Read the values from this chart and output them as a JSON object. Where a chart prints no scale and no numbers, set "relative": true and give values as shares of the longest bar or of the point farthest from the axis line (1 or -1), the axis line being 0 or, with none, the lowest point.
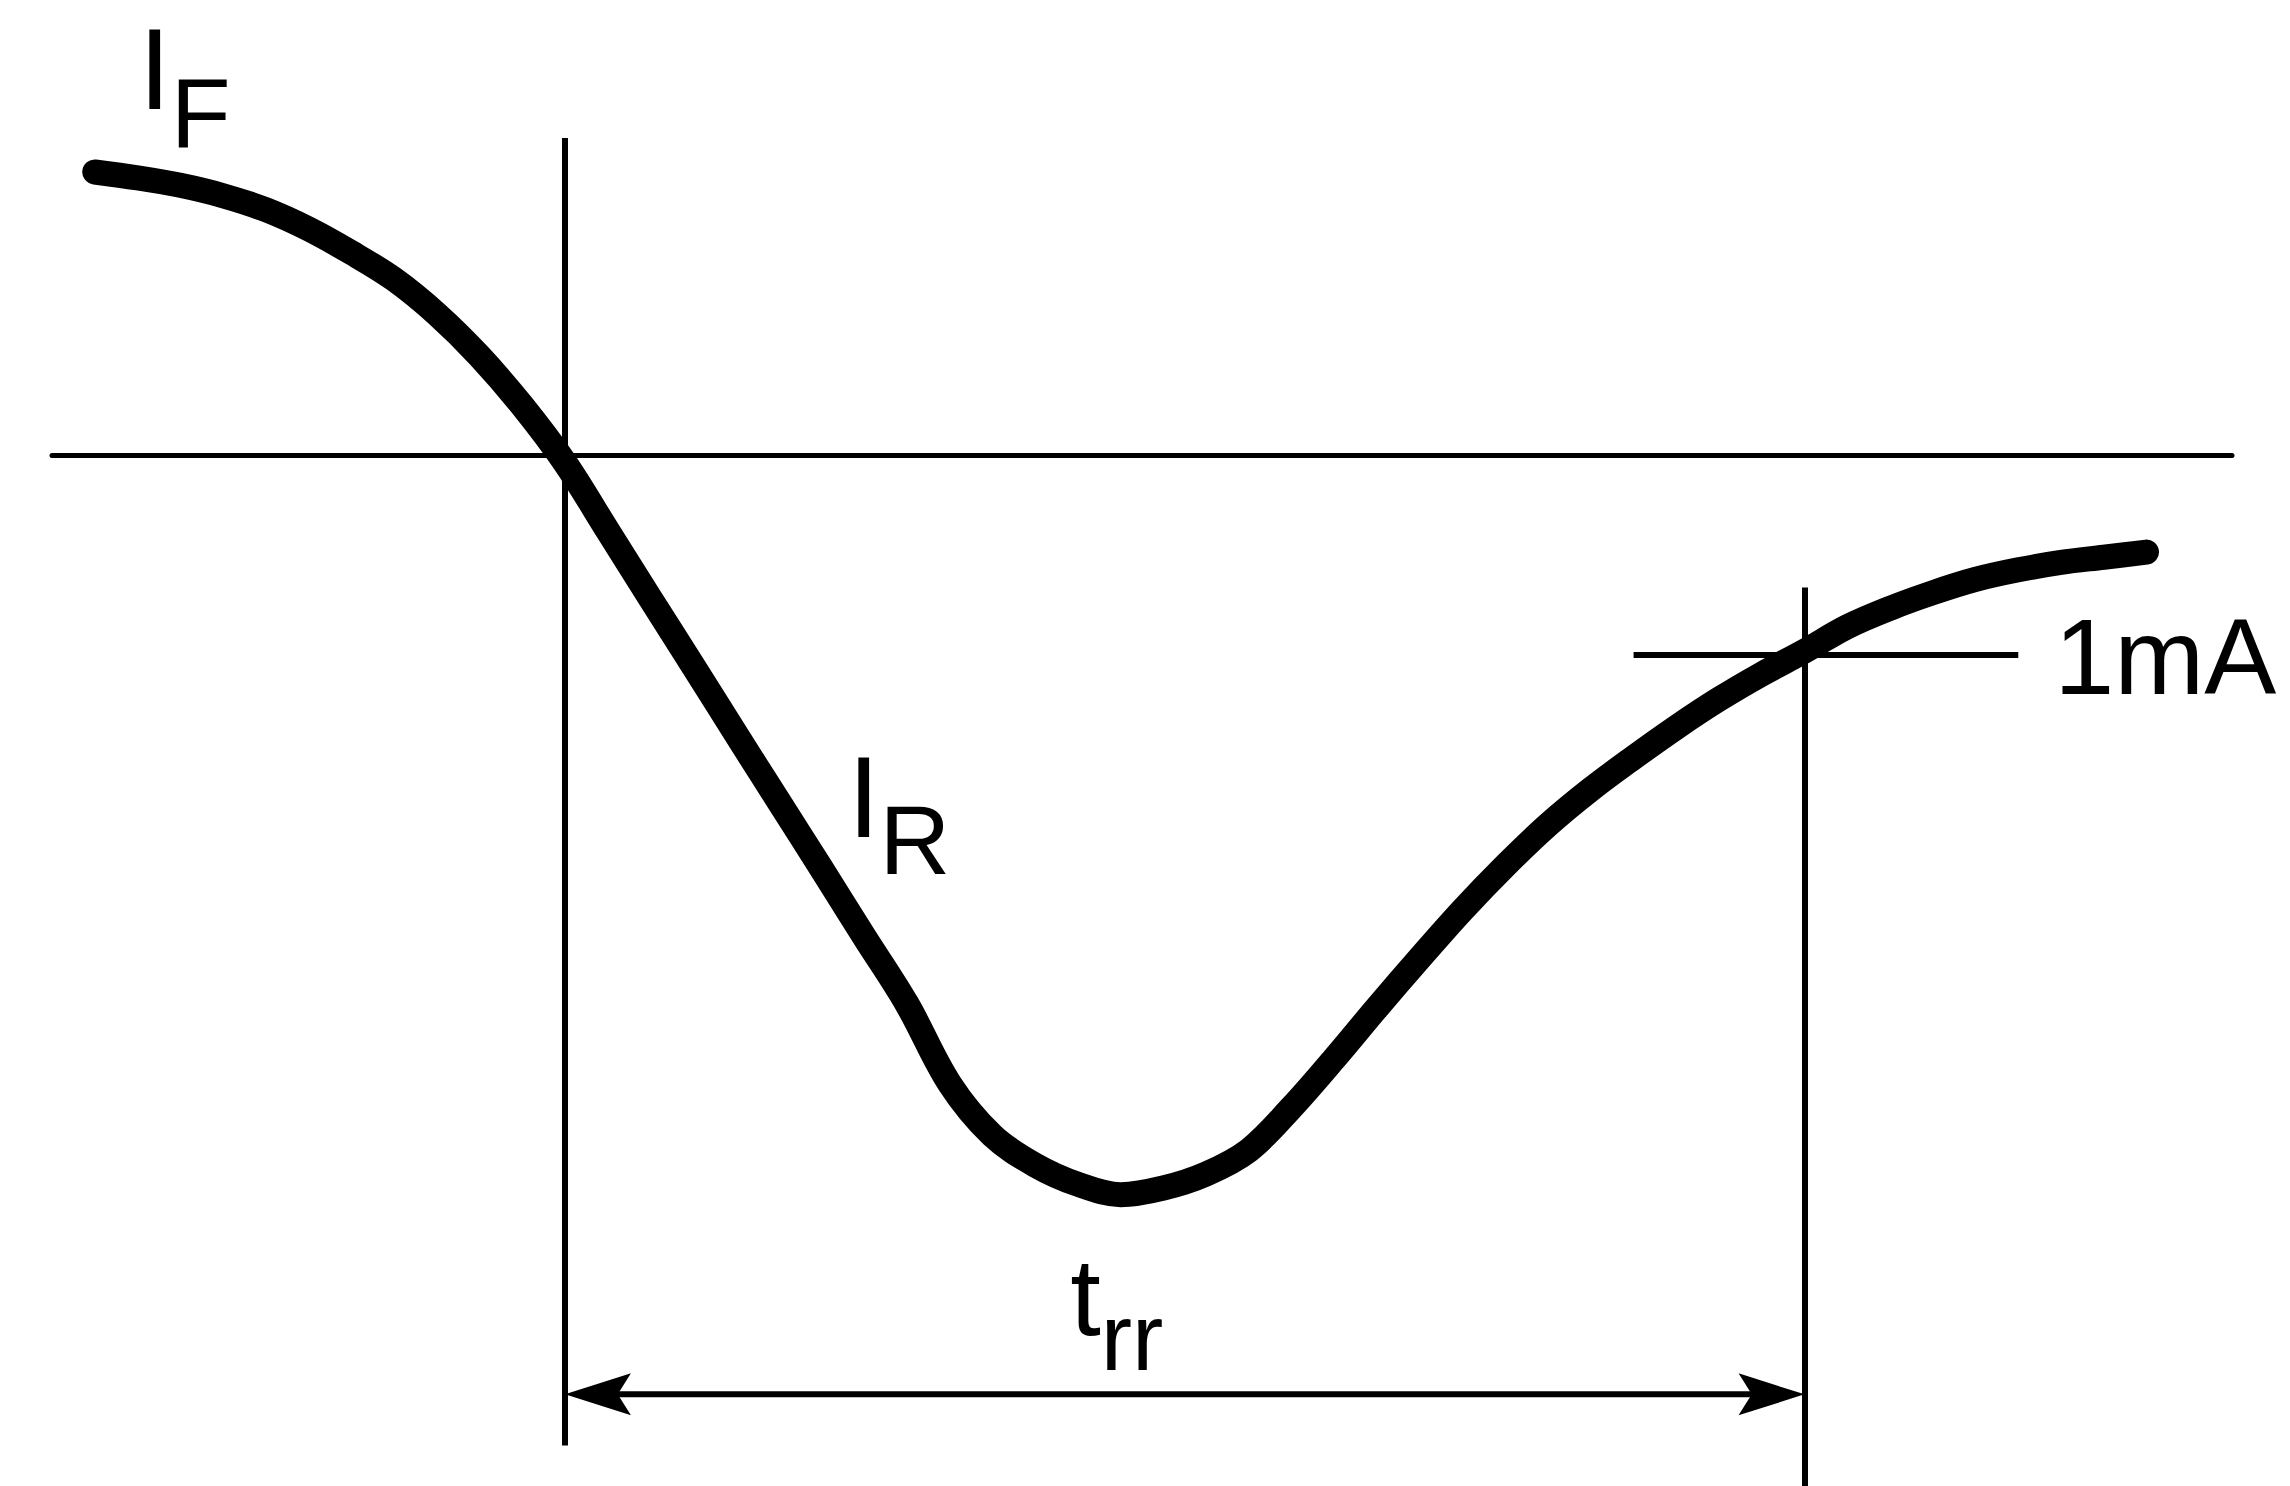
{
  "chart_data": {
    "type": "line",
    "relative": true,
    "categories": [
      null,
      null,
      null,
      null,
      null,
      null,
      null,
      null,
      null,
      null,
      null,
      null,
      null,
      null,
      null,
      null,
      null,
      null,
      null,
      null,
      null,
      null,
      null,
      null,
      null,
      null,
      null,
      null,
      null,
      null,
      null,
      null,
      null,
      null,
      null,
      null,
      null,
      null,
      null,
      null,
      null,
      null,
      null,
      null,
      null,
      null,
      null,
      null,
      null
    ],
    "series": [
      {
        "color": "#000000",
        "values": [
          0.383,
          0.375,
          0.365,
          0.351,
          0.332,
          0.306,
          0.274,
          0.238,
          0.191,
          0.134,
          0.067,
          -0.01,
          -0.102,
          -0.194,
          -0.285,
          -0.377,
          -0.468,
          -0.559,
          -0.651,
          -0.742,
          -0.85,
          -0.92,
          -0.96,
          -0.986,
          -1,
          -0.991,
          -0.972,
          -0.94,
          -0.882,
          -0.816,
          -0.747,
          -0.68,
          -0.615,
          -0.555,
          -0.5,
          -0.452,
          -0.409,
          -0.368,
          -0.33,
          -0.296,
          -0.265,
          -0.232,
          -0.207,
          -0.186,
          -0.168,
          -0.155,
          -0.145,
          -0.138,
          -0.131
        ]
      }
    ],
    "ref_lines": [
      {
        "axis": "y",
        "value": -0.27,
        "label": "1mA",
        "color": "#000000"
      }
    ],
    "annotations": [
      "I$_{F}$",
      "I$_{R}$",
      "t$_{rr}$"
    ],
    "marker": "none",
    "line_style": "solid",
    "tick_labels": false
  }
}
